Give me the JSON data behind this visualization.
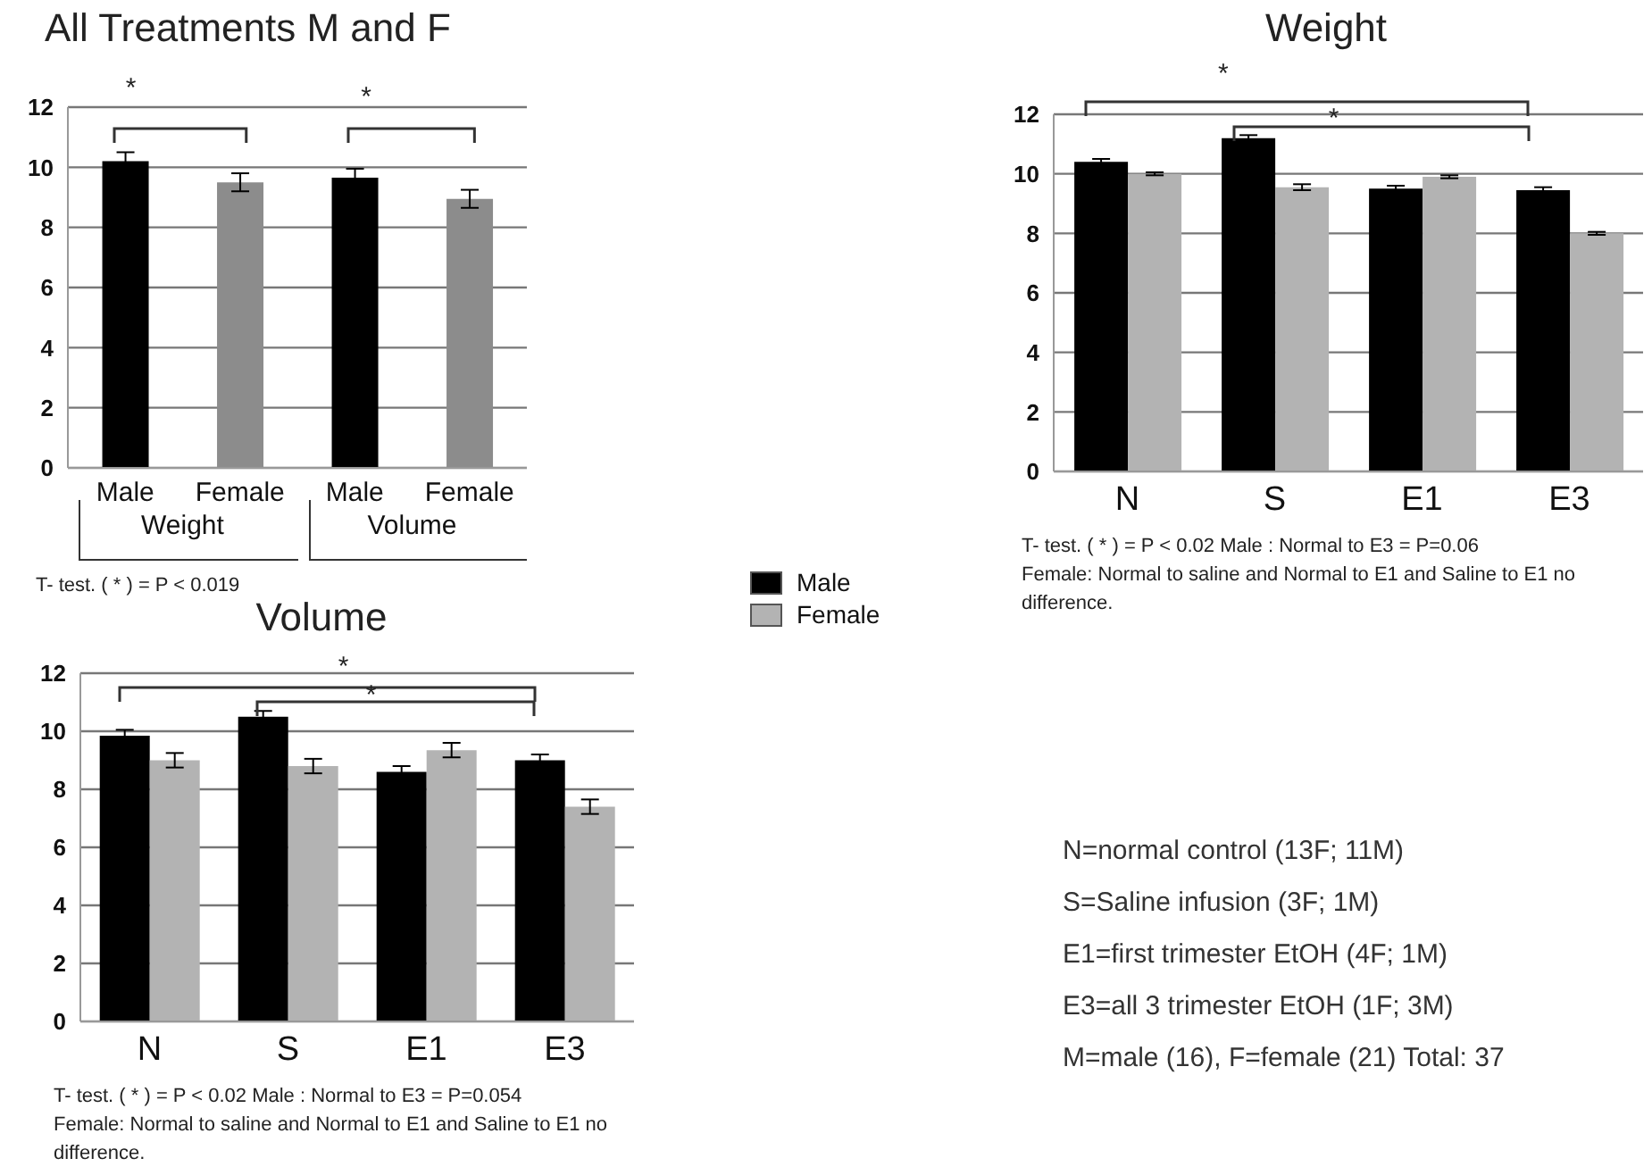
{
  "chart_data": [
    {
      "type": "bar",
      "title": "All Treatments M and F",
      "categories": [
        "Male",
        "Female",
        "Male",
        "Female"
      ],
      "values": [
        10.2,
        9.5,
        9.65,
        8.95
      ],
      "errors": [
        0.3,
        0.3,
        0.3,
        0.3
      ],
      "colors": [
        "#000000",
        "#8c8c8c",
        "#000000",
        "#8c8c8c"
      ],
      "ylim": [
        0,
        12
      ],
      "yticks": [
        0,
        2,
        4,
        6,
        8,
        10,
        12
      ],
      "grid": "y",
      "annotations": [
        "*",
        "*",
        "Weight",
        "Volume",
        "T- test. ( * ) = P < 0.019"
      ]
    },
    {
      "type": "bar",
      "title": "Weight",
      "categories": [
        "N",
        "S",
        "E1",
        "E3"
      ],
      "series": [
        {
          "color": "#000000",
          "values": [
            10.4,
            11.2,
            9.5,
            9.45
          ],
          "errors": [
            0.1,
            0.1,
            0.1,
            0.1
          ]
        },
        {
          "color": "#b3b3b3",
          "values": [
            10.0,
            9.55,
            9.9,
            8.0
          ],
          "errors": [
            0.05,
            0.1,
            0.05,
            0.05
          ]
        }
      ],
      "ylim": [
        0,
        12
      ],
      "yticks": [
        0,
        2,
        4,
        6,
        8,
        10,
        12
      ],
      "grid": "y",
      "annotations": [
        "*",
        "*",
        "T- test. ( * ) = P < 0.02  Male : Normal to E3 = P=0.06",
        "Female: Normal to saline and  Normal to E1 and Saline to E1 no difference."
      ]
    },
    {
      "type": "bar",
      "title": "Volume",
      "categories": [
        "N",
        "S",
        "E1",
        "E3"
      ],
      "series": [
        {
          "name": "Male",
          "color": "#000000",
          "values": [
            9.85,
            10.5,
            8.6,
            9.0
          ],
          "errors": [
            0.2,
            0.2,
            0.2,
            0.2
          ]
        },
        {
          "name": "Female",
          "color": "#b3b3b3",
          "values": [
            9.0,
            8.8,
            9.35,
            7.4
          ],
          "errors": [
            0.25,
            0.25,
            0.25,
            0.25
          ]
        }
      ],
      "ylim": [
        0,
        12
      ],
      "yticks": [
        0,
        2,
        4,
        6,
        8,
        10,
        12
      ],
      "grid": "y",
      "legend": "top right",
      "annotations": [
        "*",
        "*",
        "T- test. ( * ) = P < 0.02  Male : Normal to E3 = P=0.054",
        "Female: Normal to saline and  Normal to E1 and Saline to E1 no difference."
      ]
    },
    {
      "type": "other",
      "annotations": [
        "N=normal control (13F; 11M)",
        "S=Saline infusion (3F; 1M)",
        "E1=first trimester EtOH (4F; 1M)",
        "E3=all 3 trimester EtOH (1F; 3M)",
        "M=male  (16), F=female (21)  Total: 37"
      ]
    }
  ]
}
